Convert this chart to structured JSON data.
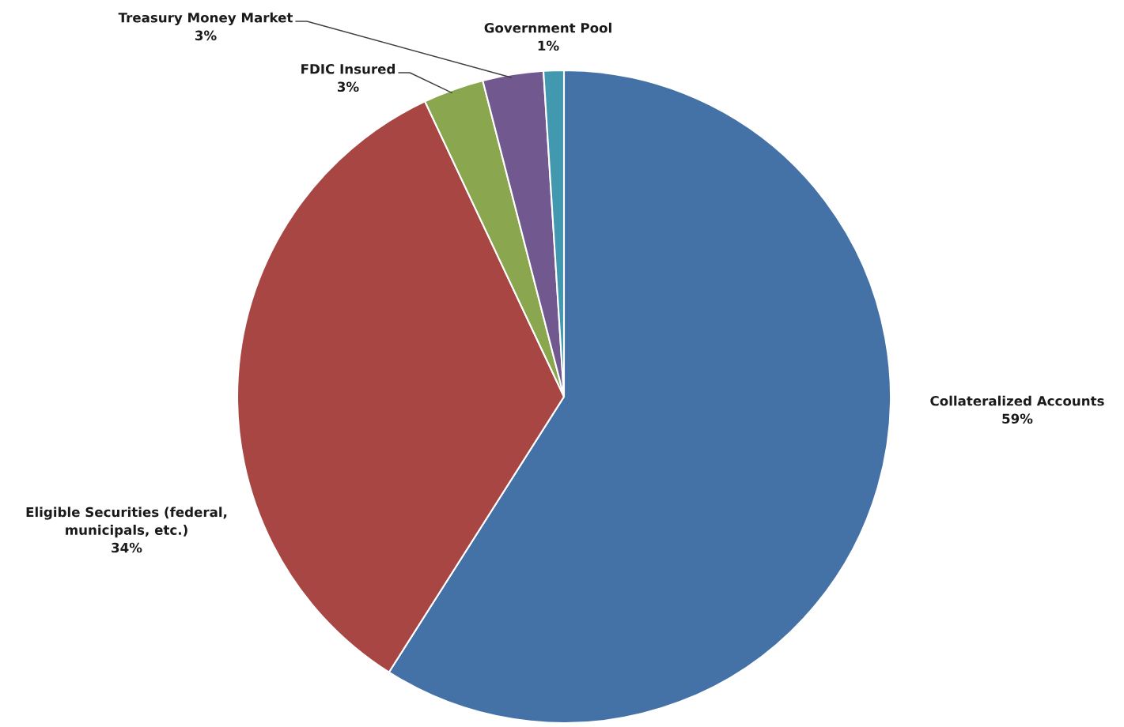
{
  "chart_data": {
    "type": "pie",
    "categories": [
      "Collateralized Accounts",
      "Eligible Securities (federal,\nmunicipals, etc.)",
      "FDIC Insured",
      "Treasury Money Market",
      "Government Pool"
    ],
    "values": [
      59,
      34,
      3,
      3,
      1
    ],
    "value_labels": [
      "59%",
      "34%",
      "3%",
      "3%",
      "1%"
    ],
    "colors": [
      "#4471a6",
      "#a84643",
      "#8aa64f",
      "#71598f",
      "#4299af"
    ]
  }
}
